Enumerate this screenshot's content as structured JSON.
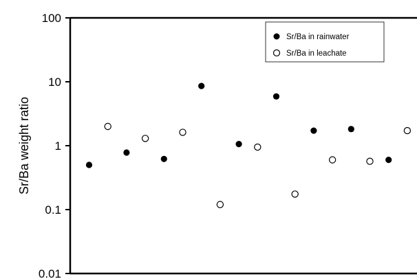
{
  "chart_data": {
    "type": "scatter",
    "title": "",
    "xlabel": "",
    "ylabel": "Sr/Ba weight ratio",
    "yscale": "log",
    "ylim": [
      0.01,
      100
    ],
    "y_ticks": [
      "100",
      "10",
      "1",
      "0.1",
      "0.01"
    ],
    "y_tick_values": [
      100,
      10,
      1,
      0.1,
      0.01
    ],
    "grid": false,
    "legend_position": "top-right",
    "x": [
      1,
      2,
      3,
      4,
      5,
      6,
      7,
      8,
      9,
      10,
      11,
      12,
      13,
      14,
      15,
      16,
      17,
      18
    ],
    "series": [
      {
        "name": "Sr/Ba in rainwater",
        "marker": "filled-circle",
        "color": "#000000",
        "x": [
          1,
          3,
          5,
          7,
          9,
          11,
          13,
          15,
          17
        ],
        "values": [
          0.5,
          0.78,
          0.62,
          8.6,
          1.06,
          5.9,
          1.72,
          1.82,
          0.6
        ]
      },
      {
        "name": "Sr/Ba in leachate",
        "marker": "open-circle",
        "color": "#000000",
        "x": [
          2,
          4,
          6,
          8,
          10,
          12,
          14,
          16,
          18
        ],
        "values": [
          2.0,
          1.3,
          1.62,
          0.12,
          0.95,
          0.175,
          0.6,
          0.57,
          1.72
        ]
      }
    ]
  }
}
